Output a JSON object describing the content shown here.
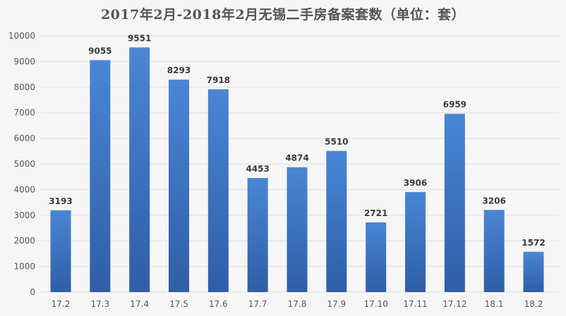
{
  "chart_data": {
    "type": "bar",
    "title": "2017年2月-2018年2月无锡二手房备案套数（单位：套）",
    "xlabel": "",
    "ylabel": "",
    "categories": [
      "17.2",
      "17.3",
      "17.4",
      "17.5",
      "17.6",
      "17.7",
      "17.8",
      "17.9",
      "17.10",
      "17.11",
      "17.12",
      "18.1",
      "18.2"
    ],
    "values": [
      3193,
      9055,
      9551,
      8293,
      7918,
      4453,
      4874,
      5510,
      2721,
      3906,
      6959,
      3206,
      1572
    ],
    "ylim": [
      0,
      10000
    ],
    "yticks": [
      0,
      1000,
      2000,
      3000,
      4000,
      5000,
      6000,
      7000,
      8000,
      9000,
      10000
    ],
    "grid": true,
    "legend": "none",
    "colors": {
      "bar_top": "#4a86d4",
      "bar_bottom": "#2f5ea8",
      "background": "#f6f6f6"
    }
  }
}
